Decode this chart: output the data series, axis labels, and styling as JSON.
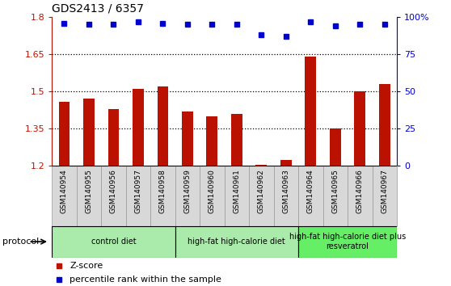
{
  "title": "GDS2413 / 6357",
  "samples": [
    "GSM140954",
    "GSM140955",
    "GSM140956",
    "GSM140957",
    "GSM140958",
    "GSM140959",
    "GSM140960",
    "GSM140961",
    "GSM140962",
    "GSM140963",
    "GSM140964",
    "GSM140965",
    "GSM140966",
    "GSM140967"
  ],
  "zscore": [
    1.46,
    1.47,
    1.43,
    1.51,
    1.52,
    1.42,
    1.4,
    1.41,
    1.205,
    1.225,
    1.64,
    1.35,
    1.5,
    1.53
  ],
  "percentile": [
    96,
    95,
    95,
    97,
    96,
    95,
    95,
    95,
    88,
    87,
    97,
    94,
    95,
    95
  ],
  "ylim_left": [
    1.2,
    1.8
  ],
  "ylim_right": [
    0,
    100
  ],
  "yticks_left": [
    1.2,
    1.35,
    1.5,
    1.65,
    1.8
  ],
  "yticks_right": [
    0,
    25,
    50,
    75,
    100
  ],
  "ytick_labels_left": [
    "1.2",
    "1.35",
    "1.5",
    "1.65",
    "1.8"
  ],
  "ytick_labels_right": [
    "0",
    "25",
    "50",
    "75",
    "100%"
  ],
  "hlines": [
    1.35,
    1.5,
    1.65
  ],
  "bar_color": "#bb1100",
  "dot_color": "#0000cc",
  "bar_width": 0.45,
  "protocol_groups": [
    {
      "label": "control diet",
      "start": 0,
      "end": 4,
      "color": "#aaeaaa"
    },
    {
      "label": "high-fat high-calorie diet",
      "start": 5,
      "end": 9,
      "color": "#aaeaaa"
    },
    {
      "label": "high-fat high-calorie diet plus\nresveratrol",
      "start": 10,
      "end": 13,
      "color": "#66ee66"
    }
  ],
  "legend_red": "Z-score",
  "legend_blue": "percentile rank within the sample",
  "protocol_label": "protocol",
  "label_bg": "#d8d8d8"
}
